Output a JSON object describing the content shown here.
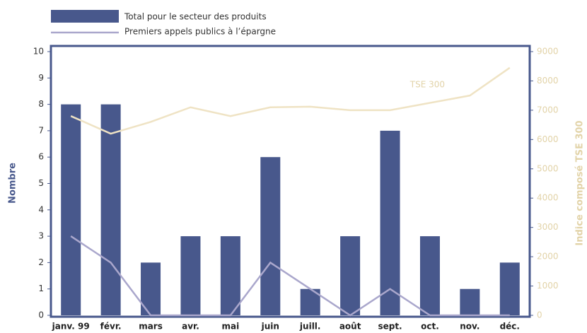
{
  "chart_data": {
    "type": "bar",
    "categories": [
      "janv. 99",
      "févr.",
      "mars",
      "avr.",
      "mai",
      "juin",
      "juill.",
      "août",
      "sept.",
      "oct.",
      "nov.",
      "déc."
    ],
    "series": [
      {
        "name": "Total pour le secteur des produits",
        "type": "bar",
        "color": "#48588c",
        "values": [
          8,
          8,
          2,
          3,
          3,
          6,
          1,
          3,
          7,
          3,
          1,
          2
        ]
      },
      {
        "name": "Premiers appels publics à l’épargne",
        "type": "line",
        "color": "#aaa7cc",
        "values": [
          3,
          2,
          0,
          0,
          0,
          2,
          1,
          0,
          1,
          0,
          0,
          0
        ]
      },
      {
        "name": "TSE 300",
        "type": "line",
        "axis": "y2",
        "color": "#efe3c4",
        "values": [
          6800,
          6200,
          6600,
          7100,
          6800,
          7100,
          7120,
          7000,
          7000,
          7250,
          7500,
          8450
        ]
      }
    ],
    "y_label": "Nombre",
    "y2_label": "Indice composé TSE 300",
    "ylim": [
      0,
      10
    ],
    "yticks": [
      0,
      1,
      2,
      3,
      4,
      5,
      6,
      7,
      8,
      9,
      10
    ],
    "y2lim": [
      0,
      9000
    ],
    "y2ticks": [
      0,
      1000,
      2000,
      3000,
      4000,
      5000,
      6000,
      7000,
      8000,
      9000
    ]
  }
}
